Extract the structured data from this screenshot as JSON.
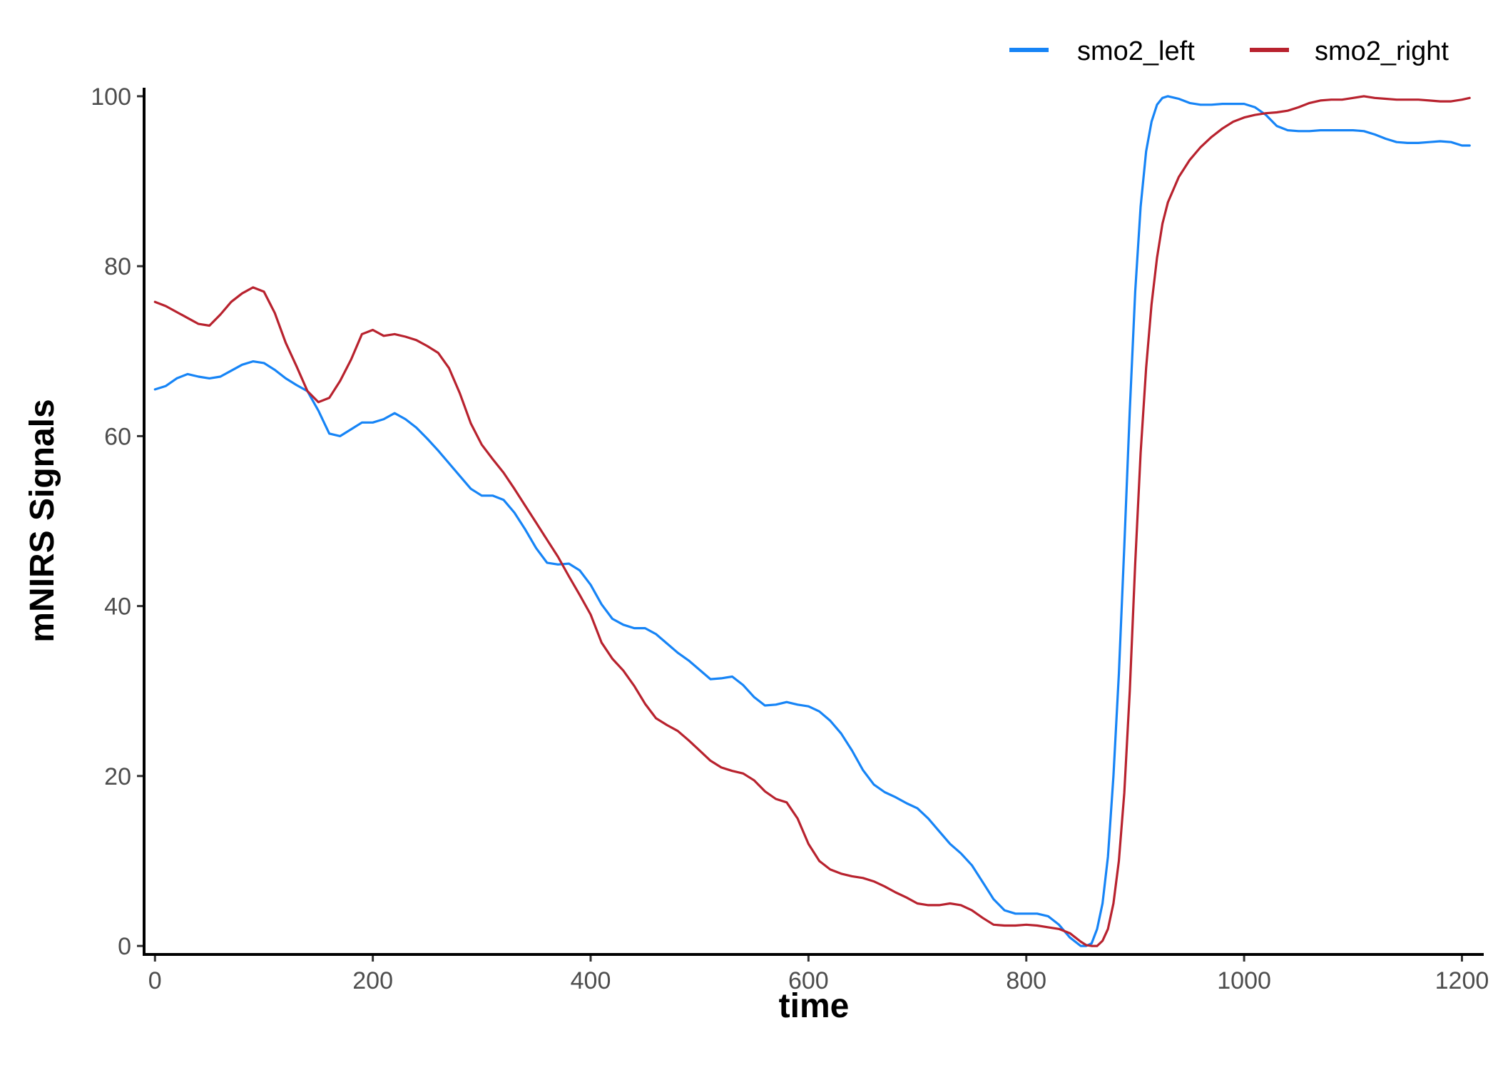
{
  "chart_data": {
    "type": "line",
    "title": "",
    "xlabel": "time",
    "ylabel": "mNIRS Signals",
    "xlim": [
      -10,
      1220
    ],
    "ylim": [
      -1,
      101
    ],
    "x_ticks": [
      0,
      200,
      400,
      600,
      800,
      1000,
      1200
    ],
    "y_ticks": [
      0,
      20,
      40,
      60,
      80,
      100
    ],
    "x_tick_labels": [
      "0",
      "200",
      "400",
      "600",
      "800",
      "1000",
      "1200"
    ],
    "y_tick_labels": [
      "0",
      "20",
      "40",
      "60",
      "80",
      "100"
    ],
    "grid": false,
    "legend_position": "top-right",
    "series": [
      {
        "name": "smo2_left",
        "color": "#1684f6",
        "x": [
          0,
          10,
          20,
          30,
          40,
          50,
          60,
          70,
          80,
          90,
          100,
          110,
          120,
          130,
          140,
          150,
          160,
          170,
          180,
          190,
          200,
          210,
          220,
          230,
          240,
          250,
          260,
          270,
          280,
          290,
          300,
          310,
          320,
          330,
          340,
          350,
          360,
          370,
          380,
          390,
          400,
          410,
          420,
          430,
          440,
          450,
          460,
          470,
          480,
          490,
          500,
          510,
          520,
          530,
          540,
          550,
          560,
          570,
          580,
          590,
          600,
          610,
          620,
          630,
          640,
          650,
          660,
          670,
          680,
          690,
          700,
          710,
          720,
          730,
          740,
          750,
          760,
          770,
          780,
          790,
          800,
          810,
          820,
          830,
          840,
          850,
          855,
          860,
          865,
          870,
          875,
          880,
          885,
          890,
          895,
          900,
          905,
          910,
          915,
          920,
          925,
          930,
          940,
          950,
          960,
          970,
          980,
          990,
          1000,
          1010,
          1020,
          1030,
          1040,
          1050,
          1060,
          1070,
          1080,
          1090,
          1100,
          1110,
          1120,
          1130,
          1140,
          1150,
          1160,
          1170,
          1180,
          1190,
          1200,
          1207
        ],
        "values": [
          65.5,
          65.9,
          66.8,
          67.3,
          67.0,
          66.8,
          67.0,
          67.7,
          68.4,
          68.8,
          68.6,
          67.8,
          66.8,
          66.0,
          65.3,
          63.0,
          60.3,
          60.0,
          60.8,
          61.6,
          61.6,
          62.0,
          62.7,
          62.0,
          61.0,
          59.7,
          58.3,
          56.8,
          55.3,
          53.8,
          53.0,
          53.0,
          52.5,
          51.0,
          49.0,
          46.8,
          45.1,
          44.9,
          45.0,
          44.2,
          42.5,
          40.2,
          38.5,
          37.8,
          37.4,
          37.4,
          36.7,
          35.6,
          34.5,
          33.6,
          32.5,
          31.4,
          31.5,
          31.7,
          30.7,
          29.3,
          28.3,
          28.4,
          28.7,
          28.4,
          28.2,
          27.6,
          26.5,
          25.0,
          23.0,
          20.7,
          19.0,
          18.1,
          17.5,
          16.8,
          16.2,
          15.0,
          13.5,
          12.0,
          10.9,
          9.5,
          7.5,
          5.5,
          4.2,
          3.8,
          3.8,
          3.8,
          3.5,
          2.5,
          1.0,
          0.0,
          0.0,
          0.3,
          2.0,
          5.0,
          10.5,
          20.0,
          32.0,
          47.0,
          63.0,
          77.0,
          87.0,
          93.5,
          97.0,
          99.0,
          99.8,
          100.0,
          99.7,
          99.2,
          99.0,
          99.0,
          99.1,
          99.1,
          99.1,
          98.7,
          97.8,
          96.5,
          96.0,
          95.9,
          95.9,
          96.0,
          96.0,
          96.0,
          96.0,
          95.9,
          95.5,
          95.0,
          94.6,
          94.5,
          94.5,
          94.6,
          94.7,
          94.6,
          94.2,
          94.2
        ]
      },
      {
        "name": "smo2_right",
        "color": "#b8222e",
        "x": [
          0,
          10,
          20,
          30,
          40,
          50,
          60,
          70,
          80,
          90,
          100,
          110,
          120,
          130,
          140,
          150,
          160,
          170,
          180,
          190,
          200,
          210,
          220,
          230,
          240,
          250,
          260,
          270,
          280,
          290,
          300,
          310,
          320,
          330,
          340,
          350,
          360,
          370,
          380,
          390,
          400,
          410,
          420,
          430,
          440,
          450,
          460,
          470,
          480,
          490,
          500,
          510,
          520,
          530,
          540,
          550,
          560,
          570,
          580,
          590,
          600,
          610,
          620,
          630,
          640,
          650,
          660,
          670,
          680,
          690,
          700,
          710,
          720,
          730,
          740,
          750,
          760,
          770,
          780,
          790,
          800,
          810,
          820,
          830,
          840,
          850,
          855,
          860,
          865,
          870,
          875,
          880,
          885,
          890,
          895,
          900,
          905,
          910,
          915,
          920,
          925,
          930,
          940,
          950,
          960,
          970,
          980,
          990,
          1000,
          1010,
          1020,
          1030,
          1040,
          1050,
          1060,
          1070,
          1080,
          1090,
          1100,
          1110,
          1120,
          1130,
          1140,
          1150,
          1160,
          1170,
          1180,
          1190,
          1200,
          1207
        ],
        "values": [
          75.8,
          75.3,
          74.6,
          73.9,
          73.2,
          73.0,
          74.3,
          75.8,
          76.8,
          77.5,
          77.0,
          74.5,
          71.0,
          68.2,
          65.3,
          64.0,
          64.5,
          66.5,
          69.0,
          72.0,
          72.5,
          71.8,
          72.0,
          71.7,
          71.3,
          70.6,
          69.8,
          68.0,
          65.0,
          61.5,
          59.0,
          57.3,
          55.7,
          53.8,
          51.8,
          49.8,
          47.8,
          45.8,
          43.5,
          41.3,
          39.0,
          35.7,
          33.8,
          32.4,
          30.6,
          28.5,
          26.8,
          26.0,
          25.3,
          24.2,
          23.0,
          21.8,
          21.0,
          20.6,
          20.3,
          19.5,
          18.2,
          17.3,
          16.9,
          15.0,
          12.0,
          10.0,
          9.0,
          8.5,
          8.2,
          8.0,
          7.6,
          7.0,
          6.3,
          5.7,
          5.0,
          4.8,
          4.8,
          5.0,
          4.8,
          4.2,
          3.3,
          2.5,
          2.4,
          2.4,
          2.5,
          2.4,
          2.2,
          2.0,
          1.5,
          0.5,
          0.1,
          0.0,
          0.0,
          0.6,
          2.0,
          5.0,
          10.0,
          18.0,
          30.0,
          45.0,
          58.0,
          68.0,
          75.5,
          81.0,
          85.0,
          87.5,
          90.5,
          92.5,
          94.0,
          95.2,
          96.2,
          97.0,
          97.5,
          97.8,
          98.0,
          98.1,
          98.3,
          98.7,
          99.2,
          99.5,
          99.6,
          99.6,
          99.8,
          100.0,
          99.8,
          99.7,
          99.6,
          99.6,
          99.6,
          99.5,
          99.4,
          99.4,
          99.6,
          99.8
        ]
      }
    ]
  }
}
